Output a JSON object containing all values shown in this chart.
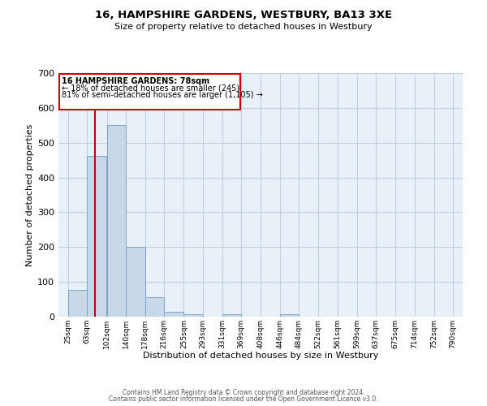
{
  "title1": "16, HAMPSHIRE GARDENS, WESTBURY, BA13 3XE",
  "title2": "Size of property relative to detached houses in Westbury",
  "xlabel": "Distribution of detached houses by size in Westbury",
  "ylabel": "Number of detached properties",
  "bin_labels": [
    "25sqm",
    "63sqm",
    "102sqm",
    "140sqm",
    "178sqm",
    "216sqm",
    "255sqm",
    "293sqm",
    "331sqm",
    "369sqm",
    "408sqm",
    "446sqm",
    "484sqm",
    "522sqm",
    "561sqm",
    "599sqm",
    "637sqm",
    "675sqm",
    "714sqm",
    "752sqm",
    "790sqm"
  ],
  "bin_edges": [
    25,
    63,
    102,
    140,
    178,
    216,
    255,
    293,
    331,
    369,
    408,
    446,
    484,
    522,
    561,
    599,
    637,
    675,
    714,
    752,
    790
  ],
  "bar_heights": [
    78,
    463,
    550,
    200,
    55,
    15,
    7,
    0,
    7,
    0,
    0,
    7,
    0,
    0,
    0,
    0,
    0,
    0,
    0,
    0
  ],
  "bar_color": "#c8d8e8",
  "bar_edge_color": "#7ba4c4",
  "property_line_x": 78,
  "property_line_color": "#cc0000",
  "ylim": [
    0,
    700
  ],
  "yticks": [
    0,
    100,
    200,
    300,
    400,
    500,
    600,
    700
  ],
  "annotation_line1": "16 HAMPSHIRE GARDENS: 78sqm",
  "annotation_line2": "← 18% of detached houses are smaller (245)",
  "annotation_line3": "81% of semi-detached houses are larger (1,105) →",
  "annotation_box_color": "#cc0000",
  "grid_color": "#c0d0e0",
  "bg_color": "#e8f0f8",
  "footer1": "Contains HM Land Registry data © Crown copyright and database right 2024.",
  "footer2": "Contains public sector information licensed under the Open Government Licence v3.0."
}
